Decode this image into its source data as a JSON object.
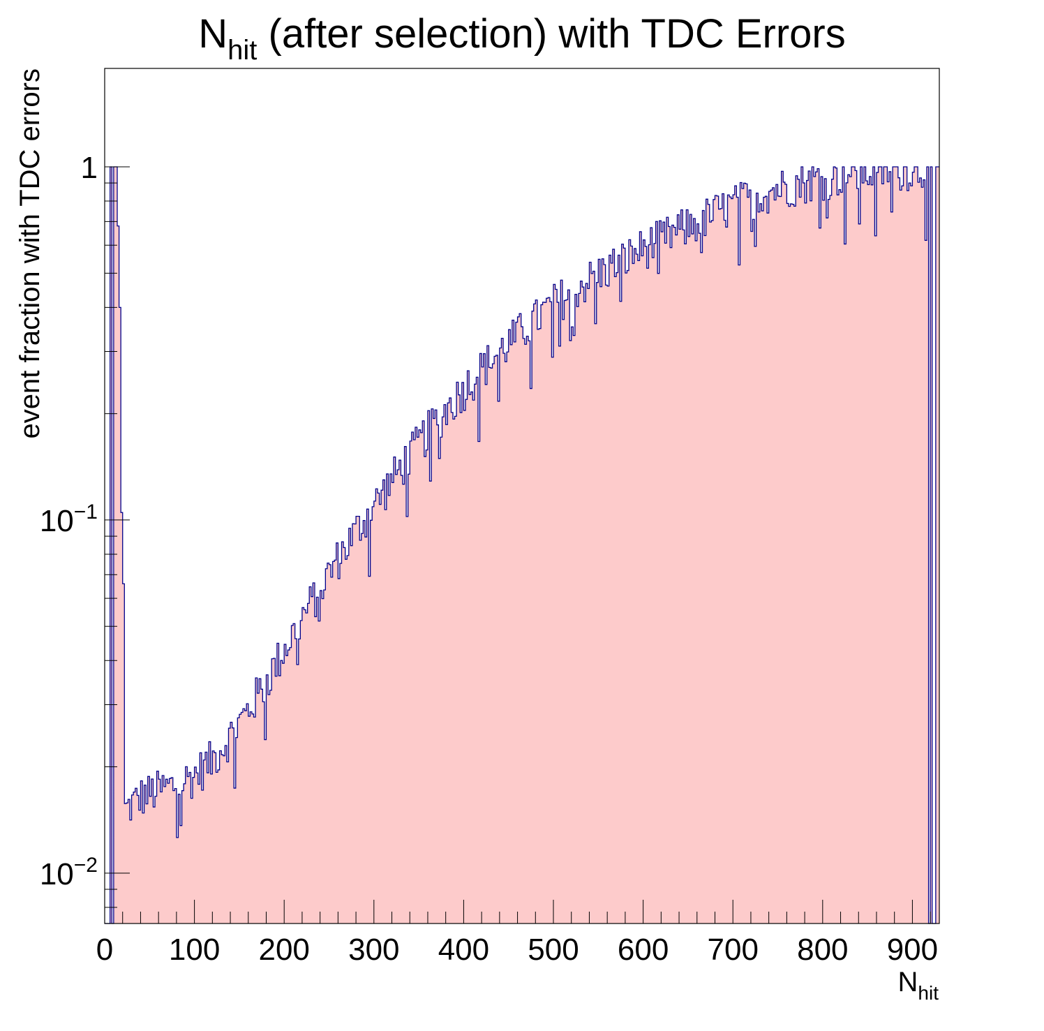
{
  "chart_data": {
    "type": "bar",
    "title_main": "N",
    "title_sub": "hit",
    "title_rest": " (after selection) with TDC Errors",
    "xlabel_main": "N",
    "xlabel_sub": "hit",
    "ylabel": "event fraction with TDC errors",
    "xlim": [
      0,
      930
    ],
    "ylim": [
      0.0072,
      1.9
    ],
    "log_y": true,
    "grid": false,
    "fill_color": "#fdcbcb",
    "line_color": "#00008b",
    "x_ticks": [
      "0",
      "100",
      "200",
      "300",
      "400",
      "500",
      "600",
      "700",
      "800",
      "900"
    ],
    "y_ticks": [
      {
        "value": 1,
        "base": "1",
        "exp": ""
      },
      {
        "value": 0.1,
        "base": "10",
        "exp": "−1"
      },
      {
        "value": 0.01,
        "base": "10",
        "exp": "−2"
      }
    ],
    "bin_width": 2,
    "features": {
      "full_bins_low": [
        [
          6,
          8
        ],
        [
          10,
          14
        ]
      ],
      "spike_bins": [
        [
          14,
          16,
          0.68
        ],
        [
          16,
          18,
          0.4
        ],
        [
          18,
          20,
          0.105
        ],
        [
          20,
          22,
          0.066
        ]
      ],
      "plateau_start": 22,
      "full_bins_high": [
        [
          916,
          918
        ],
        [
          920,
          922
        ],
        [
          926,
          930
        ]
      ]
    },
    "trend_points": [
      [
        22,
        0.015
      ],
      [
        40,
        0.0165
      ],
      [
        60,
        0.0172
      ],
      [
        80,
        0.0178
      ],
      [
        100,
        0.019
      ],
      [
        120,
        0.021
      ],
      [
        140,
        0.0245
      ],
      [
        160,
        0.029
      ],
      [
        180,
        0.035
      ],
      [
        200,
        0.043
      ],
      [
        220,
        0.053
      ],
      [
        240,
        0.064
      ],
      [
        260,
        0.078
      ],
      [
        280,
        0.093
      ],
      [
        300,
        0.11
      ],
      [
        320,
        0.13
      ],
      [
        340,
        0.153
      ],
      [
        360,
        0.178
      ],
      [
        380,
        0.205
      ],
      [
        400,
        0.235
      ],
      [
        420,
        0.268
      ],
      [
        440,
        0.3
      ],
      [
        460,
        0.335
      ],
      [
        480,
        0.37
      ],
      [
        500,
        0.41
      ],
      [
        520,
        0.445
      ],
      [
        540,
        0.48
      ],
      [
        560,
        0.515
      ],
      [
        580,
        0.55
      ],
      [
        600,
        0.59
      ],
      [
        620,
        0.625
      ],
      [
        640,
        0.66
      ],
      [
        660,
        0.7
      ],
      [
        680,
        0.74
      ],
      [
        700,
        0.78
      ],
      [
        720,
        0.82
      ],
      [
        740,
        0.855
      ],
      [
        760,
        0.885
      ],
      [
        780,
        0.91
      ],
      [
        800,
        0.93
      ],
      [
        820,
        0.95
      ],
      [
        840,
        0.965
      ],
      [
        860,
        0.975
      ],
      [
        880,
        0.985
      ],
      [
        900,
        0.99
      ],
      [
        915,
        0.995
      ]
    ]
  }
}
